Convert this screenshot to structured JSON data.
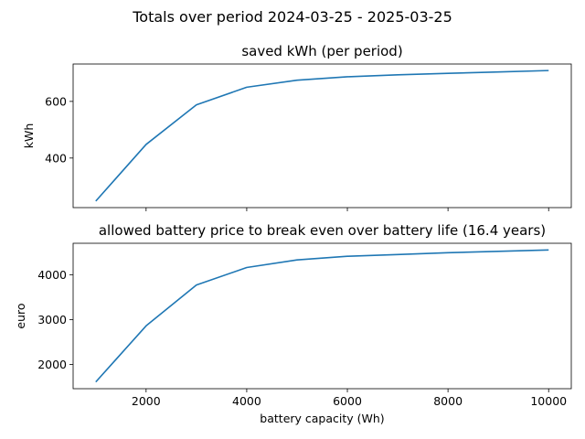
{
  "figure": {
    "suptitle": "Totals over period 2024-03-25 - 2025-03-25",
    "line_color": "#1f77b4"
  },
  "chart_data": [
    {
      "type": "line",
      "title": "saved kWh (per period)",
      "xlabel": "",
      "ylabel": "kWh",
      "x": [
        1000,
        2000,
        3000,
        4000,
        5000,
        6000,
        7000,
        8000,
        9000,
        10000
      ],
      "values": [
        248,
        448,
        588,
        650,
        675,
        687,
        694,
        699,
        704,
        709
      ],
      "xlim": [
        550,
        10450
      ],
      "ylim": [
        225,
        732
      ],
      "xticks": [
        2000,
        4000,
        6000,
        8000,
        10000
      ],
      "xtick_labels_shown": false,
      "yticks": [
        400,
        600
      ],
      "ytick_labels": [
        "400",
        "600"
      ],
      "grid": false
    },
    {
      "type": "line",
      "title": "allowed battery price to break even over battery life (16.4 years)",
      "xlabel": "battery capacity (Wh)",
      "ylabel": "euro",
      "x": [
        1000,
        2000,
        3000,
        4000,
        5000,
        6000,
        7000,
        8000,
        9000,
        10000
      ],
      "values": [
        1610,
        2860,
        3770,
        4160,
        4330,
        4410,
        4450,
        4490,
        4520,
        4550
      ],
      "xlim": [
        550,
        10450
      ],
      "ylim": [
        1460,
        4700
      ],
      "xticks": [
        2000,
        4000,
        6000,
        8000,
        10000
      ],
      "xtick_labels": [
        "2000",
        "4000",
        "6000",
        "8000",
        "10000"
      ],
      "yticks": [
        2000,
        3000,
        4000
      ],
      "ytick_labels": [
        "2000",
        "3000",
        "4000"
      ],
      "grid": false
    }
  ]
}
